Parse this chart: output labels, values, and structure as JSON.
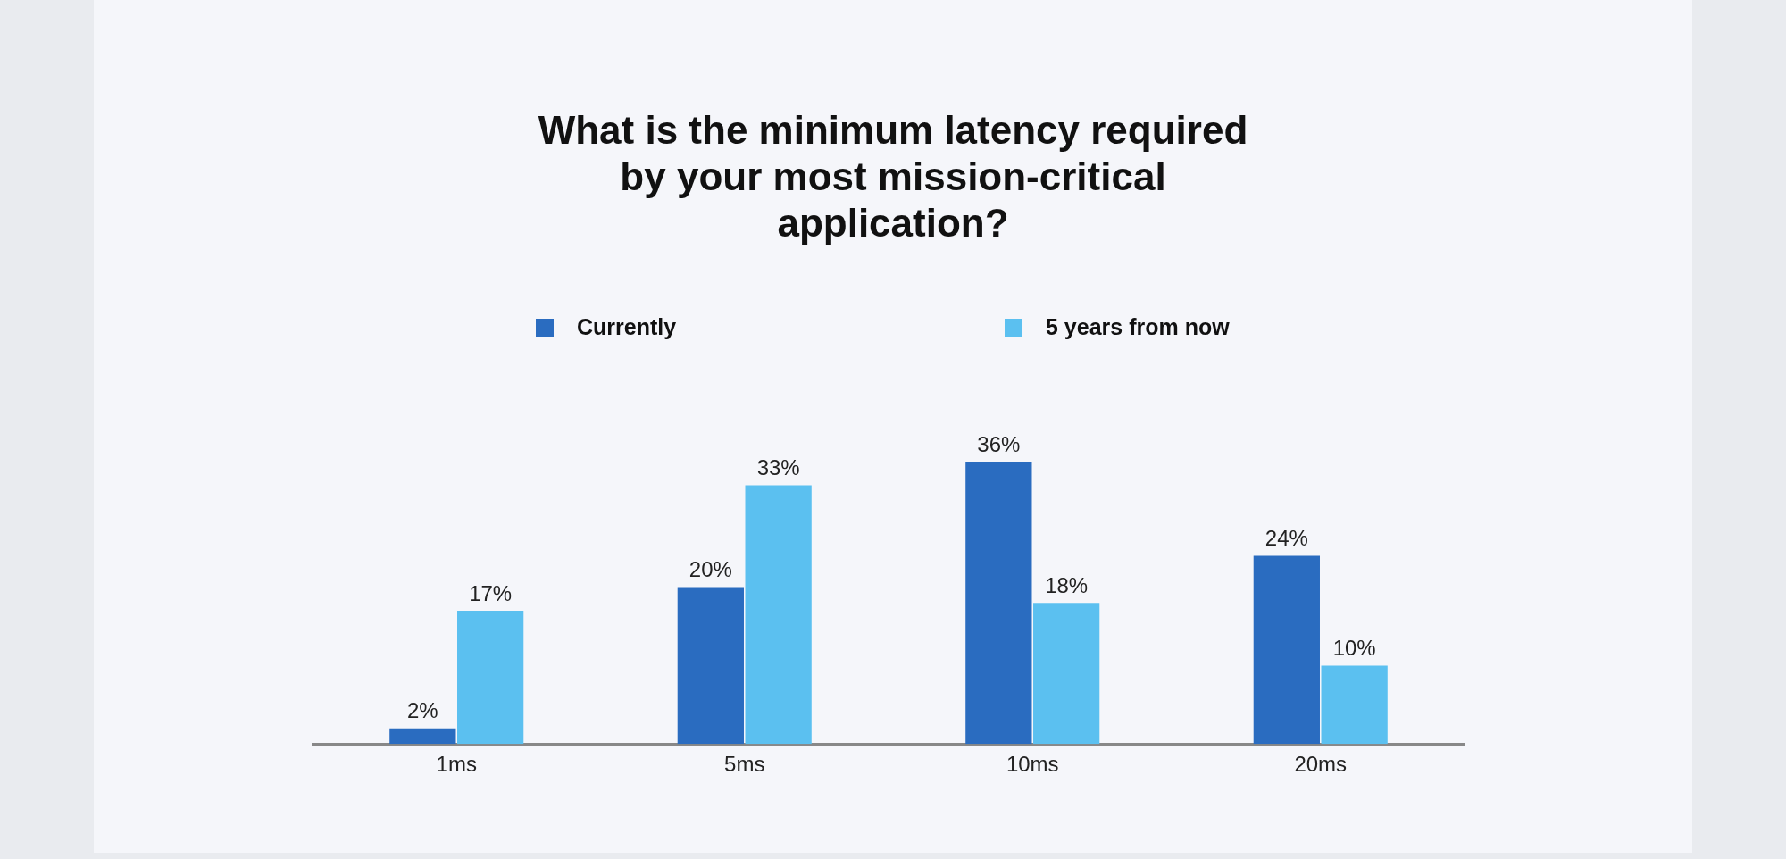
{
  "chart_data": {
    "type": "bar",
    "title": "What is the minimum latency required by your most mission-critical application?",
    "categories": [
      "1ms",
      "5ms",
      "10ms",
      "20ms"
    ],
    "series": [
      {
        "name": "Currently",
        "color": "#2a6cc0",
        "values": [
          2,
          20,
          36,
          24
        ],
        "value_labels": [
          "2%",
          "20%",
          "36%",
          "24%"
        ]
      },
      {
        "name": "5 years from now",
        "color": "#5bc0f0",
        "values": [
          17,
          33,
          18,
          10
        ],
        "value_labels": [
          "17%",
          "33%",
          "18%",
          "10%"
        ]
      }
    ],
    "grid": false,
    "legend": "top"
  }
}
